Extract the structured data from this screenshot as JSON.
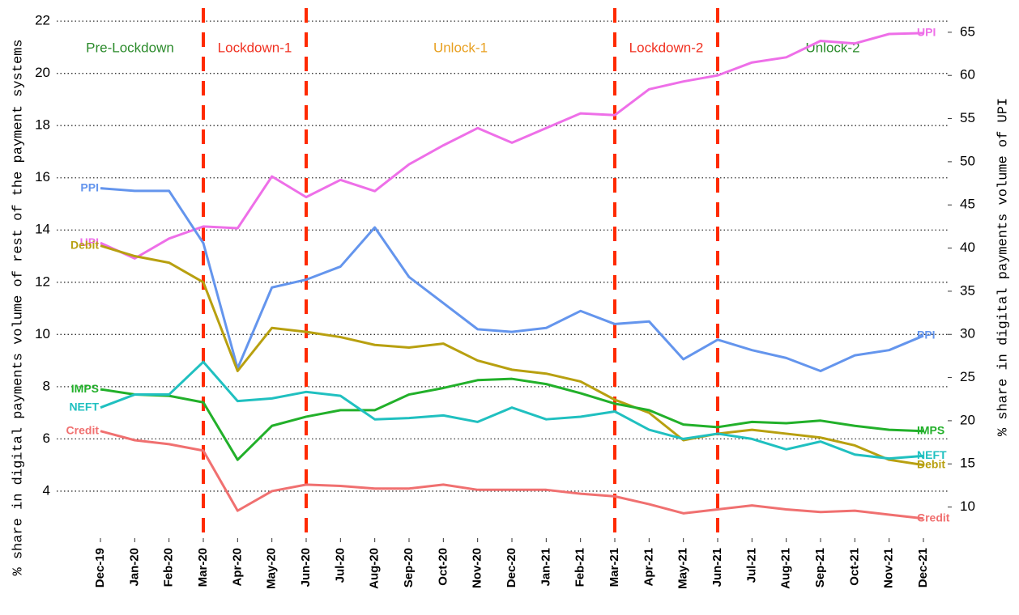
{
  "chart_data": {
    "type": "line",
    "ylabel": "% share in digital payments volume of rest of the payment systems",
    "y2label": "% share in digital payments volume of UPI",
    "categories": [
      "Dec-19",
      "Jan-20",
      "Feb-20",
      "Mar-20",
      "Apr-20",
      "May-20",
      "Jun-20",
      "Jul-20",
      "Aug-20",
      "Sep-20",
      "Oct-20",
      "Nov-20",
      "Dec-20",
      "Jan-21",
      "Feb-21",
      "Mar-21",
      "Apr-21",
      "May-21",
      "Jun-21",
      "Jul-21",
      "Aug-21",
      "Sep-21",
      "Oct-21",
      "Nov-21",
      "Dec-21"
    ],
    "ylim": [
      2.2,
      22.5
    ],
    "yticks": [
      4,
      6,
      8,
      10,
      12,
      14,
      16,
      18,
      20,
      22
    ],
    "y2lim": [
      6.4,
      67.8
    ],
    "y2ticks": [
      10,
      15,
      20,
      25,
      30,
      35,
      40,
      45,
      50,
      55,
      60,
      65
    ],
    "grid": true,
    "dividers": [
      "Mar-20",
      "Jun-20",
      "Mar-21",
      "Jun-21"
    ],
    "divider_color": "#ff2a00",
    "phases": [
      {
        "label": "Pre-Lockdown",
        "color": "#2a8a2a"
      },
      {
        "label": "Lockdown-1",
        "color": "#f03020"
      },
      {
        "label": "Unlock-1",
        "color": "#e8a020"
      },
      {
        "label": "Lockdown-2",
        "color": "#f03020"
      },
      {
        "label": "Unlock-2",
        "color": "#2a8a2a"
      }
    ],
    "series": [
      {
        "name": "UPI",
        "color": "#ee6fe8",
        "axis": "y2",
        "values": [
          40.6,
          38.8,
          41.1,
          42.5,
          42.3,
          48.3,
          45.9,
          47.9,
          46.6,
          49.7,
          51.9,
          53.9,
          52.2,
          53.9,
          55.6,
          55.4,
          58.4,
          59.3,
          60.0,
          61.5,
          62.1,
          64.0,
          63.7,
          64.8,
          64.9
        ]
      },
      {
        "name": "PPI",
        "color": "#6495ed",
        "values": [
          15.6,
          15.5,
          15.5,
          13.5,
          8.7,
          11.8,
          12.1,
          12.6,
          14.1,
          12.2,
          11.2,
          10.2,
          10.1,
          10.25,
          10.9,
          10.4,
          10.5,
          9.05,
          9.8,
          9.4,
          9.1,
          8.6,
          9.2,
          9.4,
          9.95
        ]
      },
      {
        "name": "Debit",
        "color": "#b8a010",
        "values": [
          13.4,
          13.0,
          12.75,
          12.0,
          8.6,
          10.25,
          10.1,
          9.9,
          9.6,
          9.5,
          9.65,
          9.0,
          8.65,
          8.5,
          8.2,
          7.5,
          7.0,
          5.95,
          6.2,
          6.35,
          6.2,
          6.05,
          5.75,
          5.2,
          5.0
        ]
      },
      {
        "name": "IMPS",
        "color": "#22b02a",
        "values": [
          7.9,
          7.7,
          7.65,
          7.4,
          5.2,
          6.5,
          6.85,
          7.1,
          7.1,
          7.7,
          7.95,
          8.25,
          8.3,
          8.1,
          7.75,
          7.35,
          7.1,
          6.55,
          6.45,
          6.65,
          6.6,
          6.7,
          6.5,
          6.35,
          6.3
        ]
      },
      {
        "name": "NEFT",
        "color": "#20c0c0",
        "values": [
          7.2,
          7.7,
          7.7,
          8.95,
          7.45,
          7.55,
          7.8,
          7.65,
          6.75,
          6.8,
          6.9,
          6.65,
          7.2,
          6.75,
          6.85,
          7.05,
          6.35,
          6.0,
          6.2,
          6.0,
          5.6,
          5.9,
          5.4,
          5.25,
          5.35
        ]
      },
      {
        "name": "Credit",
        "color": "#f07070",
        "values": [
          6.3,
          5.95,
          5.8,
          5.55,
          3.25,
          4.0,
          4.25,
          4.2,
          4.1,
          4.1,
          4.25,
          4.05,
          4.05,
          4.05,
          3.9,
          3.8,
          3.5,
          3.15,
          3.3,
          3.45,
          3.3,
          3.2,
          3.25,
          3.1,
          2.95
        ]
      }
    ]
  }
}
